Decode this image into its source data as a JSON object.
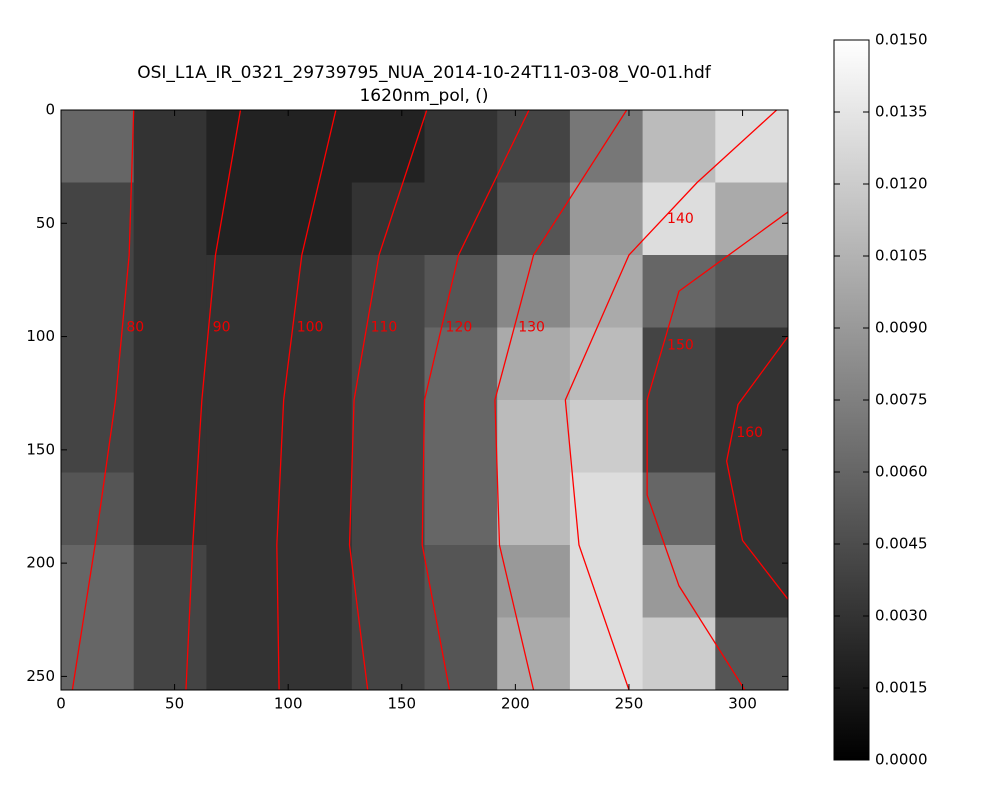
{
  "chart_data": {
    "type": "image",
    "title": "OSI_L1A_IR_0321_29739795_NUA_2014-10-24T11-03-08_V0-01.hdf",
    "subtitle": "1620nm_pol, ()",
    "cmap": "gray",
    "xlim": [
      0,
      320
    ],
    "ylim": [
      256,
      0
    ],
    "xticks": [
      0,
      50,
      100,
      150,
      200,
      250,
      300
    ],
    "yticks": [
      0,
      50,
      100,
      150,
      200,
      250
    ],
    "clim": [
      0,
      0.015
    ],
    "cticks": [
      {
        "value": 0,
        "label": "0.0000"
      },
      {
        "value": 0.0015,
        "label": "0.0015"
      },
      {
        "value": 0.003,
        "label": "0.0030"
      },
      {
        "value": 0.0045,
        "label": "0.0045"
      },
      {
        "value": 0.006,
        "label": "0.0060"
      },
      {
        "value": 0.0075,
        "label": "0.0075"
      },
      {
        "value": 0.009,
        "label": "0.0090"
      },
      {
        "value": 0.0105,
        "label": "0.0105"
      },
      {
        "value": 0.012,
        "label": "0.0120"
      },
      {
        "value": 0.0135,
        "label": "0.0135"
      },
      {
        "value": 0.015,
        "label": "0.0150"
      }
    ],
    "z": [
      [
        0.006,
        0.003,
        0.002,
        0.002,
        0.002,
        0.003,
        0.004,
        0.007,
        0.011,
        0.013
      ],
      [
        0.004,
        0.003,
        0.002,
        0.002,
        0.003,
        0.003,
        0.005,
        0.009,
        0.013,
        0.01
      ],
      [
        0.004,
        0.003,
        0.003,
        0.003,
        0.004,
        0.005,
        0.008,
        0.01,
        0.006,
        0.005
      ],
      [
        0.004,
        0.003,
        0.003,
        0.003,
        0.004,
        0.006,
        0.01,
        0.011,
        0.004,
        0.003
      ],
      [
        0.004,
        0.003,
        0.003,
        0.003,
        0.004,
        0.006,
        0.011,
        0.012,
        0.004,
        0.003
      ],
      [
        0.005,
        0.003,
        0.003,
        0.003,
        0.004,
        0.006,
        0.011,
        0.013,
        0.006,
        0.003
      ],
      [
        0.006,
        0.004,
        0.003,
        0.003,
        0.004,
        0.005,
        0.009,
        0.013,
        0.009,
        0.003
      ],
      [
        0.006,
        0.004,
        0.003,
        0.003,
        0.004,
        0.005,
        0.01,
        0.013,
        0.012,
        0.005
      ]
    ],
    "contour_color": "#ff0000",
    "contours": [
      {
        "level": 80,
        "x": [
          32,
          30,
          24,
          15,
          5
        ],
        "y": [
          0,
          64,
          128,
          192,
          256
        ]
      },
      {
        "level": 90,
        "x": [
          79,
          68,
          62,
          58,
          55
        ],
        "y": [
          0,
          64,
          128,
          192,
          256
        ]
      },
      {
        "level": 100,
        "x": [
          121,
          106,
          98,
          95,
          96
        ],
        "y": [
          0,
          64,
          128,
          192,
          256
        ]
      },
      {
        "level": 110,
        "x": [
          161,
          140,
          129,
          127,
          135
        ],
        "y": [
          0,
          64,
          128,
          192,
          256
        ]
      },
      {
        "level": 120,
        "x": [
          206,
          175,
          160,
          159,
          171
        ],
        "y": [
          0,
          64,
          128,
          192,
          256
        ]
      },
      {
        "level": 130,
        "x": [
          249,
          208,
          191,
          193,
          208
        ],
        "y": [
          0,
          64,
          128,
          192,
          256
        ]
      },
      {
        "level": 140,
        "x": [
          315,
          280,
          250,
          222,
          228,
          250
        ],
        "y": [
          0,
          32,
          64,
          128,
          192,
          256
        ]
      },
      {
        "level": 150,
        "x": [
          320,
          272,
          258,
          258,
          272,
          301
        ],
        "y": [
          45,
          80,
          128,
          170,
          210,
          256
        ]
      },
      {
        "level": 160,
        "x": [
          320,
          298,
          293,
          300,
          320
        ],
        "y": [
          100,
          130,
          155,
          190,
          216
        ]
      }
    ]
  }
}
